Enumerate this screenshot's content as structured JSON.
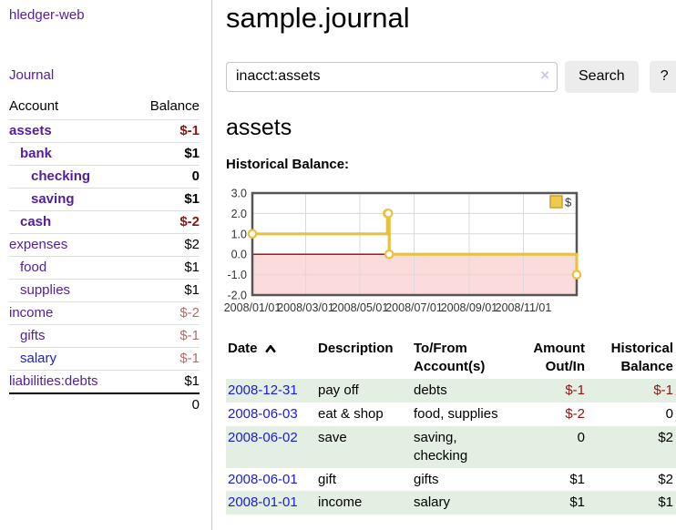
{
  "app": {
    "title": "hledger-web",
    "nav_journal": "Journal"
  },
  "sidebar": {
    "accounts_header": {
      "account": "Account",
      "balance": "Balance"
    },
    "accounts": [
      {
        "name": "assets",
        "balance": "$-1",
        "indent": 0,
        "bold": true,
        "balance_color": "neg-strong",
        "link_color": "purple"
      },
      {
        "name": "bank",
        "balance": "$1",
        "indent": 1,
        "bold": true,
        "balance_color": "",
        "link_color": "purple"
      },
      {
        "name": "checking",
        "balance": "0",
        "indent": 2,
        "bold": true,
        "balance_color": "",
        "link_color": "purple"
      },
      {
        "name": "saving",
        "balance": "$1",
        "indent": 2,
        "bold": true,
        "balance_color": "",
        "link_color": "purple"
      },
      {
        "name": "cash",
        "balance": "$-2",
        "indent": 1,
        "bold": true,
        "balance_color": "neg-strong",
        "link_color": "purple"
      },
      {
        "name": "expenses",
        "balance": "$2",
        "indent": 0,
        "bold": false,
        "balance_color": "",
        "link_color": "purple"
      },
      {
        "name": "food",
        "balance": "$1",
        "indent": 1,
        "bold": false,
        "balance_color": "",
        "link_color": "purple"
      },
      {
        "name": "supplies",
        "balance": "$1",
        "indent": 1,
        "bold": false,
        "balance_color": "",
        "link_color": "purple"
      },
      {
        "name": "income",
        "balance": "$-2",
        "indent": 0,
        "bold": false,
        "balance_color": "neg-faded",
        "link_color": "purple"
      },
      {
        "name": "gifts",
        "balance": "$-1",
        "indent": 1,
        "bold": false,
        "balance_color": "neg-faded",
        "link_color": "purple"
      },
      {
        "name": "salary",
        "balance": "$-1",
        "indent": 1,
        "bold": false,
        "balance_color": "neg-faded",
        "link_color": "blue"
      },
      {
        "name": "liabilities:debts",
        "balance": "$1",
        "indent": 0,
        "bold": false,
        "balance_color": "",
        "link_color": "purple"
      }
    ],
    "total": "0"
  },
  "header": {
    "title": "sample.journal"
  },
  "search": {
    "value": "inacct:assets",
    "clear_icon": "×",
    "button": "Search",
    "help_button": "?"
  },
  "account_page": {
    "heading": "assets",
    "chart_label": "Historical Balance:"
  },
  "chart_data": {
    "type": "line",
    "title": "Historical Balance:",
    "style": "step-after",
    "series": [
      {
        "name": "$",
        "color": "#e8c23f",
        "points": [
          {
            "x": "2008-01-01",
            "y": 1
          },
          {
            "x": "2008-06-01",
            "y": 2
          },
          {
            "x": "2008-06-02",
            "y": 2
          },
          {
            "x": "2008-06-03",
            "y": 0
          },
          {
            "x": "2008-12-31",
            "y": -1
          }
        ]
      }
    ],
    "xlim": [
      "2008-01-01",
      "2008-12-31"
    ],
    "ylim": [
      -2,
      3
    ],
    "yticks": [
      3.0,
      2.0,
      1.0,
      0.0,
      -1.0,
      -2.0
    ],
    "xticks": [
      "2008/01/01",
      "2008/03/01",
      "2008/05/01",
      "2008/07/01",
      "2008/09/01",
      "2008/11/01"
    ],
    "grid": true,
    "negative_region_fill": "#fbdbdb",
    "zero_line_color": "#9b0000",
    "legend": {
      "position": "top-right",
      "label": "$",
      "swatch_fill": "#eecb50",
      "swatch_border": "#c7a12c"
    }
  },
  "register": {
    "columns": [
      {
        "label": "Date",
        "align": "left",
        "sorted_asc": true
      },
      {
        "label": "Description",
        "align": "left"
      },
      {
        "label": "To/From Account(s)",
        "align": "left"
      },
      {
        "label": "Amount Out/In",
        "align": "right"
      },
      {
        "label": "Historical Balance",
        "align": "right"
      }
    ],
    "rows": [
      {
        "date": "2008-12-31",
        "description": "pay off",
        "accounts": "debts",
        "amount": "$-1",
        "amount_negative": true,
        "balance": "$-1",
        "balance_negative": true
      },
      {
        "date": "2008-06-03",
        "description": "eat & shop",
        "accounts": "food, supplies",
        "amount": "$-2",
        "amount_negative": true,
        "balance": "0",
        "balance_negative": false
      },
      {
        "date": "2008-06-02",
        "description": "save",
        "accounts": "saving, checking",
        "amount": "0",
        "amount_negative": false,
        "balance": "$2",
        "balance_negative": false
      },
      {
        "date": "2008-06-01",
        "description": "gift",
        "accounts": "gifts",
        "amount": "$1",
        "amount_negative": false,
        "balance": "$2",
        "balance_negative": false
      },
      {
        "date": "2008-01-01",
        "description": "income",
        "accounts": "salary",
        "amount": "$1",
        "amount_negative": false,
        "balance": "$1",
        "balance_negative": false
      }
    ]
  }
}
